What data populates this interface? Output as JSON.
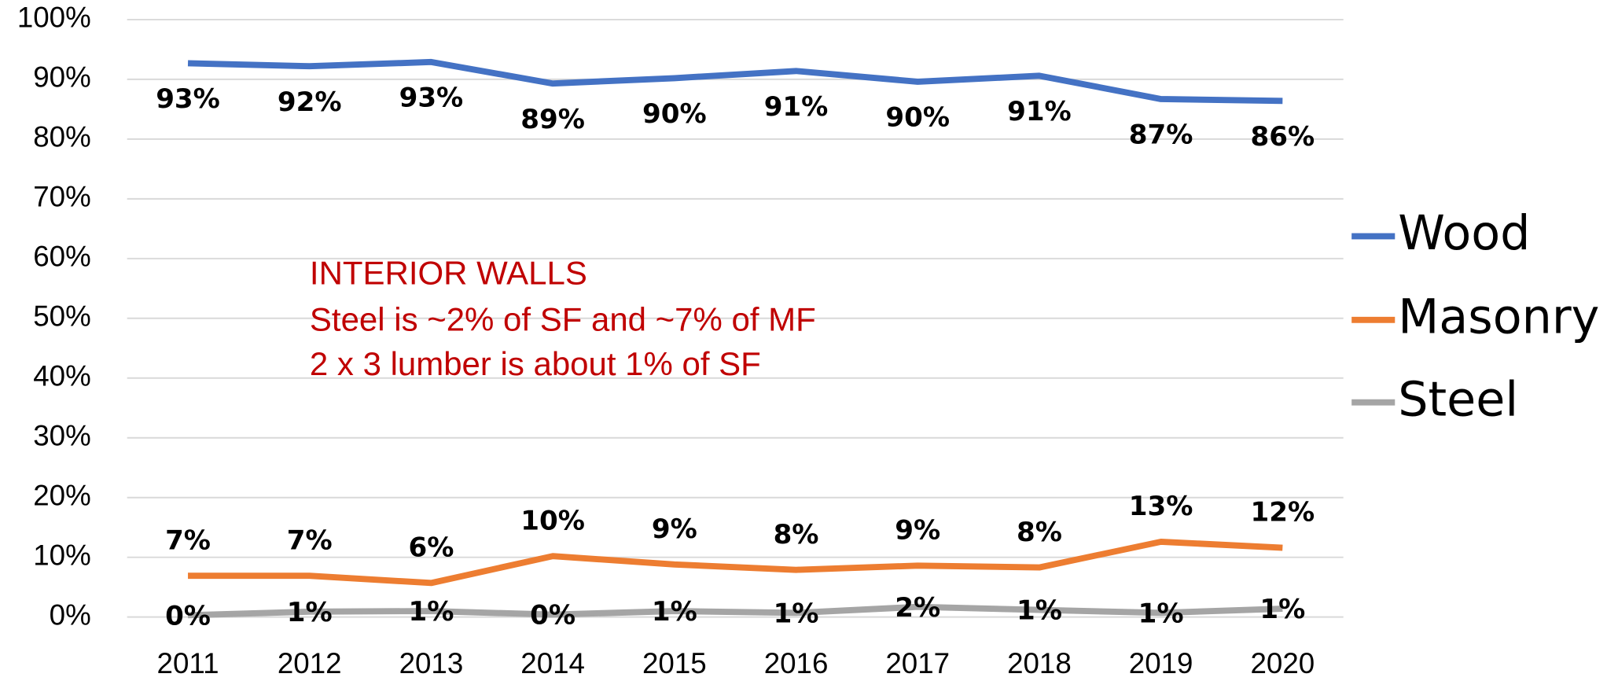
{
  "chart_data": {
    "type": "line",
    "categories": [
      "2011",
      "2012",
      "2013",
      "2014",
      "2015",
      "2016",
      "2017",
      "2018",
      "2019",
      "2020"
    ],
    "series": [
      {
        "name": "Wood",
        "color": "#4472c4",
        "values": [
          92.7,
          92.2,
          92.9,
          89.3,
          90.2,
          91.4,
          89.6,
          90.6,
          86.7,
          86.4
        ],
        "value_labels": [
          "93%",
          "92%",
          "93%",
          "89%",
          "90%",
          "91%",
          "90%",
          "91%",
          "87%",
          "86%"
        ]
      },
      {
        "name": "Masonry",
        "color": "#ed7d31",
        "values": [
          6.9,
          6.9,
          5.7,
          10.2,
          8.8,
          7.9,
          8.6,
          8.3,
          12.6,
          11.6
        ],
        "value_labels": [
          "7%",
          "7%",
          "6%",
          "10%",
          "9%",
          "8%",
          "9%",
          "8%",
          "13%",
          "12%"
        ]
      },
      {
        "name": "Steel",
        "color": "#a5a5a5",
        "values": [
          0.3,
          0.9,
          1.0,
          0.4,
          1.0,
          0.7,
          1.7,
          1.2,
          0.7,
          1.4
        ],
        "value_labels": [
          "0%",
          "1%",
          "1%",
          "0%",
          "1%",
          "1%",
          "2%",
          "1%",
          "1%",
          "1%"
        ]
      }
    ],
    "ylim": [
      0,
      100
    ],
    "yticks": [
      {
        "value": 0,
        "label": "0%"
      },
      {
        "value": 10,
        "label": "10%"
      },
      {
        "value": 20,
        "label": "20%"
      },
      {
        "value": 30,
        "label": "30%"
      },
      {
        "value": 40,
        "label": "40%"
      },
      {
        "value": 50,
        "label": "50%"
      },
      {
        "value": 60,
        "label": "60%"
      },
      {
        "value": 70,
        "label": "70%"
      },
      {
        "value": 80,
        "label": "80%"
      },
      {
        "value": 90,
        "label": "90%"
      },
      {
        "value": 100,
        "label": "100%"
      }
    ],
    "grid": true,
    "legend": "right",
    "annotations": [
      "INTERIOR WALLS",
      "Steel is ~2% of SF and ~7% of MF",
      "2 x 3 lumber is about 1% of SF"
    ]
  }
}
